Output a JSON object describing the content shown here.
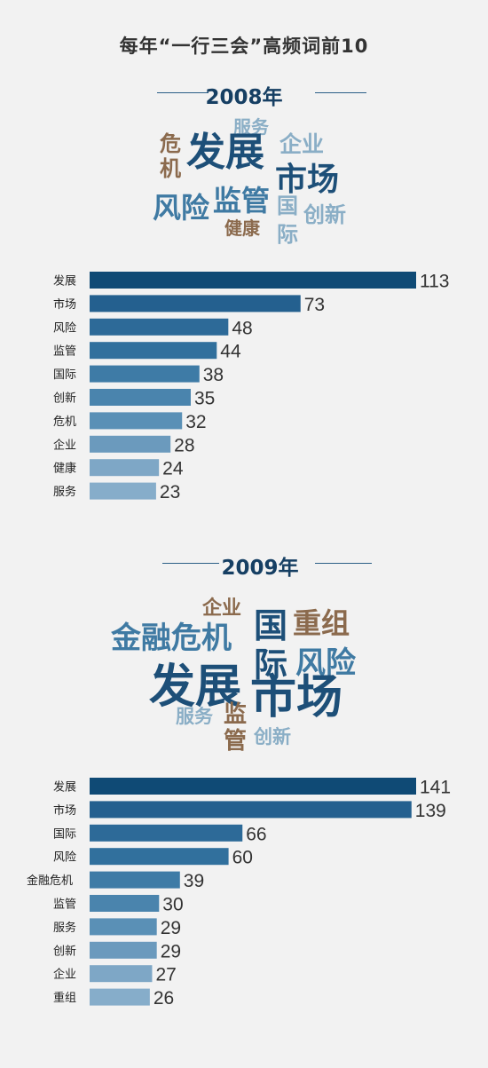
{
  "title": "每年“一行三会”高频词前10",
  "colors": {
    "word_dark": "#1d4f78",
    "word_mid": "#3f7aa3",
    "word_light": "#8aaec6",
    "word_brown": "#8b6a4d",
    "bar_shades": [
      "#0f4a75",
      "#24608f",
      "#2d6a98",
      "#31709d",
      "#3e7ba6",
      "#4a84ad",
      "#5a90b6",
      "#6b9abd",
      "#7ea7c6",
      "#86adca"
    ]
  },
  "chart_data": [
    {
      "type": "bar",
      "title": "2008年",
      "categories": [
        "发展",
        "市场",
        "风险",
        "监管",
        "国际",
        "创新",
        "危机",
        "企业",
        "健康",
        "服务"
      ],
      "values": [
        113,
        73,
        48,
        44,
        38,
        35,
        32,
        28,
        24,
        23
      ],
      "xlim": [
        0,
        113
      ],
      "word_cloud": [
        {
          "text": "服务",
          "color": "word_light",
          "size": 20
        },
        {
          "text": "企业",
          "color": "word_light",
          "size": 25
        },
        {
          "text": "危",
          "color": "word_brown",
          "size": 24
        },
        {
          "text": "机",
          "color": "word_brown",
          "size": 24
        },
        {
          "text": "发展",
          "color": "word_dark",
          "size": 44
        },
        {
          "text": "市场",
          "color": "word_dark",
          "size": 36
        },
        {
          "text": "风险",
          "color": "word_mid",
          "size": 32
        },
        {
          "text": "监管",
          "color": "word_mid",
          "size": 32
        },
        {
          "text": "国",
          "color": "word_light",
          "size": 24
        },
        {
          "text": "创新",
          "color": "word_light",
          "size": 24
        },
        {
          "text": "际",
          "color": "word_light",
          "size": 24
        },
        {
          "text": "健康",
          "color": "word_brown",
          "size": 20
        }
      ]
    },
    {
      "type": "bar",
      "title": "2009年",
      "categories": [
        "发展",
        "市场",
        "国际",
        "风险",
        "金融危机",
        "监管",
        "服务",
        "创新",
        "企业",
        "重组"
      ],
      "values": [
        141,
        139,
        66,
        60,
        39,
        30,
        29,
        29,
        27,
        26
      ],
      "xlim": [
        0,
        141
      ],
      "word_cloud": [
        {
          "text": "企业",
          "color": "word_brown",
          "size": 22
        },
        {
          "text": "金融危机",
          "color": "word_mid",
          "size": 34
        },
        {
          "text": "国",
          "color": "word_dark",
          "size": 38
        },
        {
          "text": "重组",
          "color": "word_brown",
          "size": 32
        },
        {
          "text": "际",
          "color": "word_dark",
          "size": 38
        },
        {
          "text": "风险",
          "color": "word_mid",
          "size": 34
        },
        {
          "text": "发展",
          "color": "word_dark",
          "size": 52
        },
        {
          "text": "市场",
          "color": "word_dark",
          "size": 52
        },
        {
          "text": "服务",
          "color": "word_light",
          "size": 21
        },
        {
          "text": "监",
          "color": "word_brown",
          "size": 26
        },
        {
          "text": "管",
          "color": "word_brown",
          "size": 26
        },
        {
          "text": "创新",
          "color": "word_light",
          "size": 21
        }
      ]
    }
  ]
}
